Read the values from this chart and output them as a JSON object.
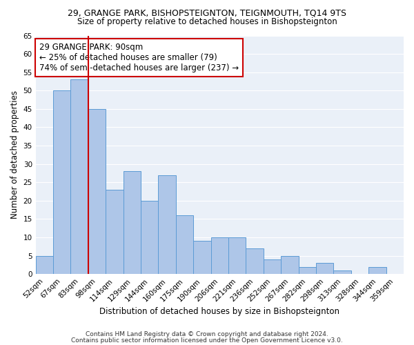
{
  "title": "29, GRANGE PARK, BISHOPSTEIGNTON, TEIGNMOUTH, TQ14 9TS",
  "subtitle": "Size of property relative to detached houses in Bishopsteignton",
  "xlabel": "Distribution of detached houses by size in Bishopsteignton",
  "ylabel": "Number of detached properties",
  "categories": [
    "52sqm",
    "67sqm",
    "83sqm",
    "98sqm",
    "114sqm",
    "129sqm",
    "144sqm",
    "160sqm",
    "175sqm",
    "190sqm",
    "206sqm",
    "221sqm",
    "236sqm",
    "252sqm",
    "267sqm",
    "282sqm",
    "298sqm",
    "313sqm",
    "328sqm",
    "344sqm",
    "359sqm"
  ],
  "values": [
    5,
    50,
    53,
    45,
    23,
    28,
    20,
    27,
    16,
    9,
    10,
    10,
    7,
    4,
    5,
    2,
    3,
    1,
    0,
    2,
    0
  ],
  "bar_color": "#aec6e8",
  "bar_edge_color": "#5b9bd5",
  "vline_x_index": 2.5,
  "vline_color": "#cc0000",
  "annotation_line1": "29 GRANGE PARK: 90sqm",
  "annotation_line2": "← 25% of detached houses are smaller (79)",
  "annotation_line3": "74% of semi-detached houses are larger (237) →",
  "annotation_box_color": "#ffffff",
  "annotation_box_edge_color": "#cc0000",
  "annotation_fontsize": 8.5,
  "ylim": [
    0,
    65
  ],
  "yticks": [
    0,
    5,
    10,
    15,
    20,
    25,
    30,
    35,
    40,
    45,
    50,
    55,
    60,
    65
  ],
  "footer1": "Contains HM Land Registry data © Crown copyright and database right 2024.",
  "footer2": "Contains public sector information licensed under the Open Government Licence v3.0.",
  "title_fontsize": 9,
  "subtitle_fontsize": 8.5,
  "xlabel_fontsize": 8.5,
  "ylabel_fontsize": 8.5,
  "tick_fontsize": 7.5,
  "footer_fontsize": 6.5,
  "background_color": "#eaf0f8",
  "grid_color": "#ffffff"
}
